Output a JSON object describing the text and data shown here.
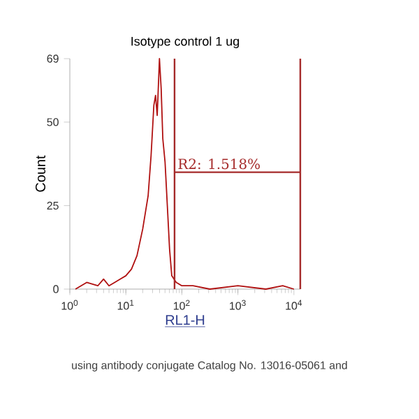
{
  "chart_data": {
    "type": "line",
    "title": "Isotype control 1 ug",
    "xlabel": "RL1-H",
    "ylabel": "Count",
    "log": "x",
    "series": [
      {
        "color": "#b01010",
        "x": [
          1.26,
          2,
          3.16,
          4,
          5,
          6.3,
          7.9,
          10,
          12.6,
          15.8,
          20,
          25,
          28.2,
          31.6,
          33.9,
          36.3,
          39.8,
          42.7,
          45.7,
          50.1,
          55,
          60.3,
          66,
          79.4,
          100,
          158,
          316,
          1000,
          3160,
          6310,
          10000
        ],
        "values": [
          0,
          2,
          1,
          3,
          1,
          2,
          3,
          4,
          6,
          10,
          18,
          28,
          40,
          55,
          58,
          52,
          69,
          60,
          45,
          38,
          25,
          12,
          4,
          2,
          1,
          1,
          0,
          1,
          0,
          1,
          0
        ]
      }
    ],
    "xlim": [
      1,
      13000
    ],
    "ylim": [
      0,
      69
    ],
    "xticks": [
      {
        "value": 1,
        "label": "10$^{0}$"
      },
      {
        "value": 10,
        "label": "10$^{1}$"
      },
      {
        "value": 100,
        "label": "10$^{2}$"
      },
      {
        "value": 1000,
        "label": "10$^{3}$"
      },
      {
        "value": 10000,
        "label": "10$^{4}$"
      }
    ],
    "yticks": [
      0,
      25,
      50,
      69
    ],
    "ref_lines": [
      {
        "axis": "x",
        "value": 74,
        "color": "#a52a2a"
      },
      {
        "axis": "x",
        "value": 13000,
        "color": "#a52a2a"
      },
      {
        "axis": "y",
        "value": 35,
        "color": "#a52a2a"
      }
    ],
    "annotations": [
      {
        "text": "R2: 1.518%",
        "x": 74,
        "y": 35
      },
      "using antibody conjugate Catalog No. 13016-05061 and"
    ]
  }
}
